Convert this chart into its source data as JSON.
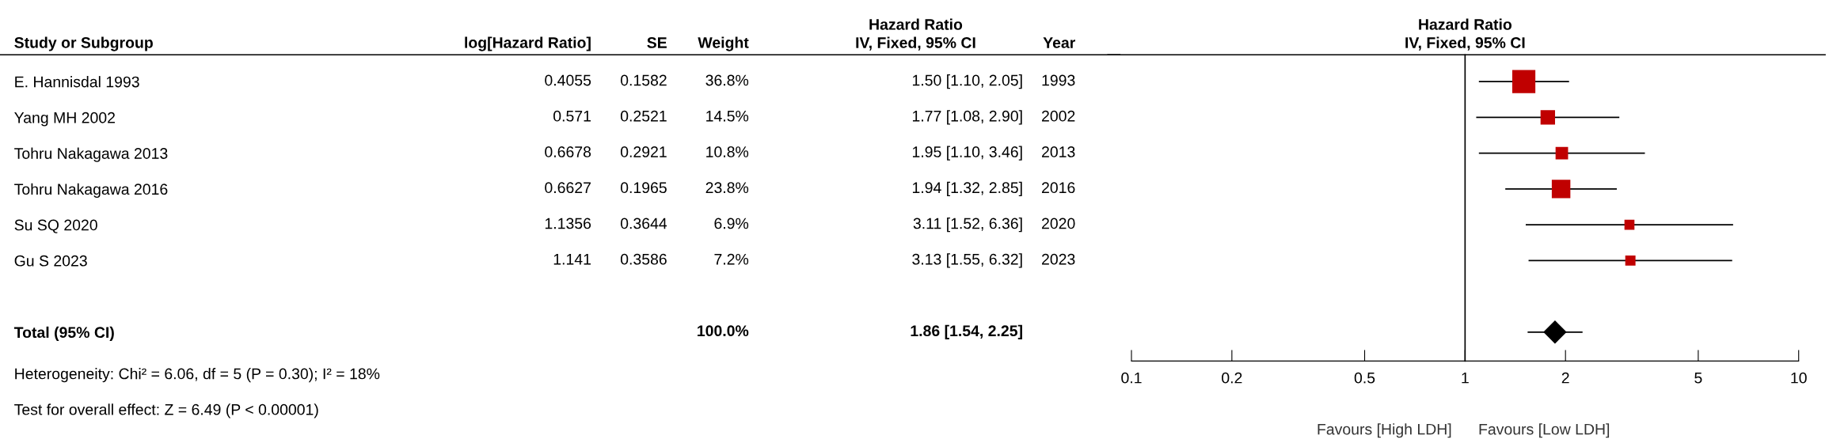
{
  "chart_data": [
    {
      "type": "other",
      "ylabel": "Study or Subgroup",
      "categories": [
        "log[Hazard Ratio]",
        "SE",
        "Weight",
        "Hazard Ratio\nIV, Fixed, 95% CI",
        "Year"
      ],
      "y_categories": [
        "E. Hannisdal 1993",
        "Yang MH 2002",
        "Tohru Nakagawa 2013",
        "Tohru Nakagawa 2016",
        "Su SQ 2020",
        "Gu S 2023"
      ],
      "cell_labels": [
        [
          "0.4055",
          "0.1582",
          "36.8%",
          "1.50 [1.10, 2.05]",
          "1993"
        ],
        [
          "0.571",
          "0.2521",
          "14.5%",
          "1.77 [1.08, 2.90]",
          "2002"
        ],
        [
          "0.6678",
          "0.2921",
          "10.8%",
          "1.95 [1.10, 3.46]",
          "2013"
        ],
        [
          "0.6627",
          "0.1965",
          "23.8%",
          "1.94 [1.32, 2.85]",
          "2016"
        ],
        [
          "1.1356",
          "0.3644",
          "6.9%",
          "3.11 [1.52, 6.36]",
          "2020"
        ],
        [
          "1.141",
          "0.3586",
          "7.2%",
          "3.13 [1.55, 6.32]",
          "2023"
        ]
      ]
    },
    {
      "type": "other",
      "categories": [
        null,
        null,
        null,
        null,
        null
      ],
      "y_categories": [
        "Total (95% CI)"
      ],
      "cell_labels": [
        [
          null,
          null,
          "100.0%",
          "1.86 [1.54, 2.25]",
          null
        ]
      ],
      "annotations": [
        "Heterogeneity: Chi² = 6.06, df = 5 (P = 0.30); I² = 18%",
        "Test for overall effect: Z = 6.49 (P < 0.00001)"
      ]
    },
    {
      "type": "scatter",
      "orientation": "horizontal",
      "title": "Hazard Ratio\nIV, Fixed, 95% CI",
      "log": "x",
      "categories": [
        null,
        null,
        null,
        null,
        null,
        null,
        null,
        null
      ],
      "xlim": [
        0.1,
        10
      ],
      "xticks": [
        0.1,
        0.2,
        0.5,
        1,
        2,
        5,
        10
      ],
      "grid": false,
      "legend": false,
      "tick_labels": "x",
      "series": [
        {
          "color": "#c00000",
          "marker": "square",
          "values": [
            1.5,
            1.77,
            1.95,
            1.94,
            3.11,
            3.13,
            null,
            null
          ],
          "sizes": [
            1,
            0.394,
            0.293,
            0.647,
            0.1875,
            0.196,
            null,
            null
          ],
          "errors": [
            [
              1.1,
              2.05
            ],
            [
              1.08,
              2.9
            ],
            [
              1.1,
              3.46
            ],
            [
              1.32,
              2.85
            ],
            [
              1.52,
              6.36
            ],
            [
              1.55,
              6.32
            ],
            null,
            null
          ]
        },
        {
          "color": "#000000",
          "marker": "diamond",
          "values": [
            null,
            null,
            null,
            null,
            null,
            null,
            null,
            1.86
          ],
          "errors": [
            null,
            null,
            null,
            null,
            null,
            null,
            null,
            [
              1.54,
              2.25
            ]
          ]
        }
      ],
      "ref_lines": [
        {
          "axis": "x",
          "value": 1,
          "color": "#000000"
        }
      ],
      "annotations": [
        "Favours [High LDH]",
        "Favours [Low LDH]"
      ]
    }
  ]
}
